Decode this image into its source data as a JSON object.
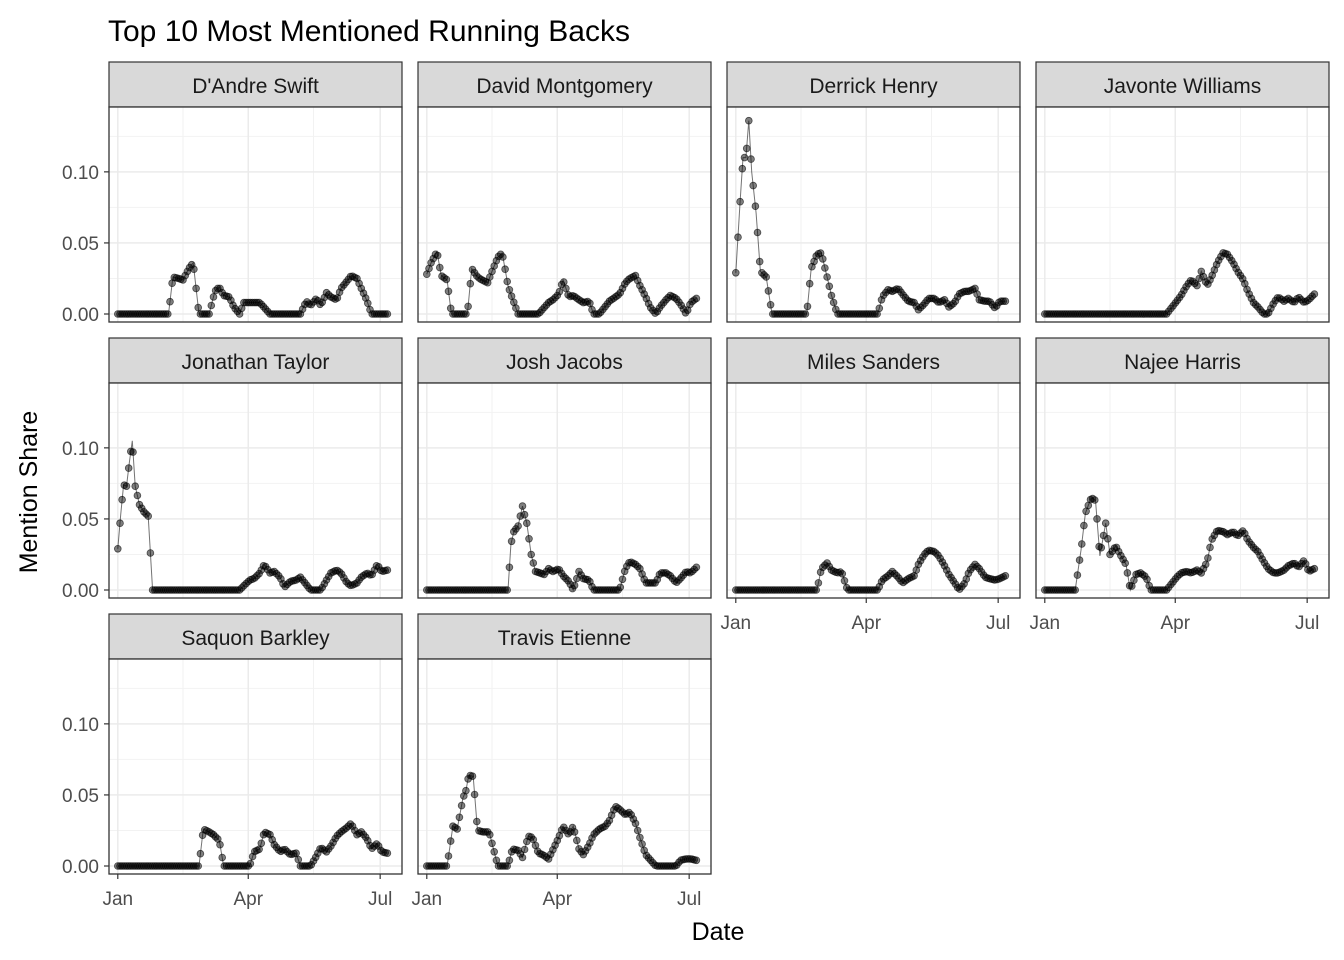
{
  "chart_data": {
    "type": "scatter",
    "title": "Top 10 Most Mentioned Running Backs",
    "xlabel": "Date",
    "ylabel": "Mention Share",
    "x_ticks": [
      "Jan",
      "Apr",
      "Jul"
    ],
    "y_ticks": [
      "0.00",
      "0.05",
      "0.10"
    ],
    "xlim": [
      "2022-01-01",
      "2022-07-10"
    ],
    "ylim": [
      0,
      0.14
    ],
    "grid": true,
    "legend": "none",
    "point_color": "#000000",
    "strip_fill": "#d9d9d9",
    "series": [
      {
        "name": "D'Andre Swift",
        "dates": [
          "2022-01-01",
          "2022-01-08",
          "2022-01-15",
          "2022-01-22",
          "2022-01-29",
          "2022-02-05",
          "2022-02-08",
          "2022-02-12",
          "2022-02-15",
          "2022-02-19",
          "2022-02-22",
          "2022-02-26",
          "2022-03-05",
          "2022-03-09",
          "2022-03-12",
          "2022-03-15",
          "2022-03-19",
          "2022-03-22",
          "2022-03-26",
          "2022-03-29",
          "2022-04-02",
          "2022-04-09",
          "2022-04-16",
          "2022-04-23",
          "2022-04-30",
          "2022-05-04",
          "2022-05-07",
          "2022-05-11",
          "2022-05-14",
          "2022-05-18",
          "2022-05-21",
          "2022-05-25",
          "2022-05-28",
          "2022-06-01",
          "2022-06-04",
          "2022-06-08",
          "2022-06-11",
          "2022-06-15",
          "2022-06-18",
          "2022-06-22",
          "2022-06-25",
          "2022-06-29",
          "2022-07-02",
          "2022-07-06"
        ],
        "values": [
          0,
          0,
          0,
          0,
          0,
          0,
          0.026,
          0.025,
          0.024,
          0.032,
          0.036,
          0,
          0,
          0.016,
          0.019,
          0.013,
          0.012,
          0.005,
          0,
          0.008,
          0.008,
          0.008,
          0,
          0,
          0,
          0,
          0,
          0.009,
          0.006,
          0.011,
          0.006,
          0.015,
          0.012,
          0.01,
          0.018,
          0.023,
          0.027,
          0.025,
          0.018,
          0.009,
          0,
          0,
          0,
          0
        ]
      },
      {
        "name": "David Montgomery",
        "dates": [
          "2022-01-01",
          "2022-01-04",
          "2022-01-08",
          "2022-01-11",
          "2022-01-15",
          "2022-01-18",
          "2022-01-22",
          "2022-01-29",
          "2022-02-01",
          "2022-02-05",
          "2022-02-08",
          "2022-02-12",
          "2022-02-15",
          "2022-02-19",
          "2022-02-22",
          "2022-02-26",
          "2022-03-01",
          "2022-03-05",
          "2022-03-12",
          "2022-03-19",
          "2022-03-26",
          "2022-03-29",
          "2022-04-02",
          "2022-04-05",
          "2022-04-09",
          "2022-04-12",
          "2022-04-16",
          "2022-04-19",
          "2022-04-23",
          "2022-04-26",
          "2022-04-30",
          "2022-05-07",
          "2022-05-14",
          "2022-05-18",
          "2022-05-21",
          "2022-05-25",
          "2022-05-28",
          "2022-06-01",
          "2022-06-04",
          "2022-06-08",
          "2022-06-11",
          "2022-06-15",
          "2022-06-18",
          "2022-06-22",
          "2022-06-25",
          "2022-06-29",
          "2022-07-02",
          "2022-07-06"
        ],
        "values": [
          0.028,
          0.036,
          0.044,
          0.027,
          0.024,
          0,
          0,
          0,
          0.032,
          0.026,
          0.024,
          0.022,
          0.03,
          0.04,
          0.043,
          0.02,
          0.011,
          0,
          0,
          0,
          0.008,
          0.01,
          0.014,
          0.024,
          0.012,
          0.013,
          0.01,
          0.008,
          0.009,
          0,
          0,
          0.009,
          0.014,
          0.022,
          0.025,
          0.027,
          0.02,
          0.012,
          0.005,
          0,
          0.005,
          0.01,
          0.013,
          0.011,
          0.007,
          0,
          0.008,
          0.011
        ]
      },
      {
        "name": "Derrick Henry",
        "dates": [
          "2022-01-01",
          "2022-01-04",
          "2022-01-06",
          "2022-01-08",
          "2022-01-10",
          "2022-01-12",
          "2022-01-15",
          "2022-01-18",
          "2022-01-22",
          "2022-01-26",
          "2022-01-29",
          "2022-02-05",
          "2022-02-12",
          "2022-02-19",
          "2022-02-22",
          "2022-02-26",
          "2022-03-01",
          "2022-03-05",
          "2022-03-08",
          "2022-03-12",
          "2022-03-19",
          "2022-03-26",
          "2022-04-02",
          "2022-04-09",
          "2022-04-12",
          "2022-04-16",
          "2022-04-19",
          "2022-04-23",
          "2022-04-26",
          "2022-04-30",
          "2022-05-04",
          "2022-05-07",
          "2022-05-11",
          "2022-05-14",
          "2022-05-18",
          "2022-05-21",
          "2022-05-25",
          "2022-05-28",
          "2022-06-01",
          "2022-06-04",
          "2022-06-08",
          "2022-06-11",
          "2022-06-15",
          "2022-06-18",
          "2022-06-22",
          "2022-06-25",
          "2022-06-29",
          "2022-07-02",
          "2022-07-06"
        ],
        "values": [
          0.029,
          0.079,
          0.11,
          0.11,
          0.136,
          0.1,
          0.071,
          0.03,
          0.026,
          0,
          0,
          0,
          0,
          0,
          0.032,
          0.042,
          0.043,
          0.026,
          0.013,
          0,
          0,
          0,
          0,
          0,
          0.012,
          0.017,
          0.016,
          0.018,
          0.014,
          0.009,
          0.008,
          0.003,
          0.007,
          0.011,
          0.011,
          0.008,
          0.01,
          0.005,
          0.008,
          0.014,
          0.016,
          0.016,
          0.018,
          0.01,
          0.009,
          0.009,
          0.004,
          0.009,
          0.009
        ]
      },
      {
        "name": "Javonte Williams",
        "dates": [
          "2022-01-01",
          "2022-01-15",
          "2022-01-29",
          "2022-02-12",
          "2022-02-26",
          "2022-03-12",
          "2022-03-26",
          "2022-04-02",
          "2022-04-05",
          "2022-04-09",
          "2022-04-12",
          "2022-04-16",
          "2022-04-19",
          "2022-04-23",
          "2022-04-26",
          "2022-04-30",
          "2022-05-04",
          "2022-05-07",
          "2022-05-11",
          "2022-05-14",
          "2022-05-18",
          "2022-05-21",
          "2022-05-25",
          "2022-05-28",
          "2022-06-01",
          "2022-06-04",
          "2022-06-08",
          "2022-06-11",
          "2022-06-15",
          "2022-06-18",
          "2022-06-22",
          "2022-06-25",
          "2022-06-29",
          "2022-07-02",
          "2022-07-06"
        ],
        "values": [
          0,
          0,
          0,
          0,
          0,
          0,
          0,
          0.009,
          0.013,
          0.02,
          0.024,
          0.02,
          0.03,
          0.02,
          0.026,
          0.036,
          0.043,
          0.042,
          0.036,
          0.03,
          0.024,
          0.016,
          0.008,
          0.005,
          0,
          0,
          0.008,
          0.012,
          0.009,
          0.011,
          0.008,
          0.012,
          0.008,
          0.01,
          0.014
        ]
      },
      {
        "name": "Jonathan Taylor",
        "dates": [
          "2022-01-01",
          "2022-01-03",
          "2022-01-05",
          "2022-01-07",
          "2022-01-09",
          "2022-01-11",
          "2022-01-13",
          "2022-01-16",
          "2022-01-19",
          "2022-01-22",
          "2022-01-25",
          "2022-01-29",
          "2022-02-05",
          "2022-02-12",
          "2022-02-19",
          "2022-02-26",
          "2022-03-05",
          "2022-03-12",
          "2022-03-19",
          "2022-03-26",
          "2022-04-02",
          "2022-04-05",
          "2022-04-09",
          "2022-04-12",
          "2022-04-16",
          "2022-04-19",
          "2022-04-23",
          "2022-04-26",
          "2022-04-30",
          "2022-05-04",
          "2022-05-07",
          "2022-05-14",
          "2022-05-21",
          "2022-05-25",
          "2022-05-28",
          "2022-06-01",
          "2022-06-04",
          "2022-06-08",
          "2022-06-11",
          "2022-06-15",
          "2022-06-18",
          "2022-06-22",
          "2022-06-25",
          "2022-06-29",
          "2022-07-02",
          "2022-07-06"
        ],
        "values": [
          0.029,
          0.053,
          0.074,
          0.073,
          0.09,
          0.105,
          0.073,
          0.06,
          0.055,
          0.052,
          0,
          0,
          0,
          0,
          0,
          0,
          0,
          0,
          0,
          0,
          0.007,
          0.008,
          0.012,
          0.018,
          0.012,
          0.013,
          0.009,
          0.002,
          0.006,
          0.007,
          0.009,
          0,
          0,
          0.007,
          0.012,
          0.014,
          0.012,
          0.005,
          0.003,
          0.005,
          0.009,
          0.012,
          0.01,
          0.018,
          0.013,
          0.014
        ]
      },
      {
        "name": "Josh Jacobs",
        "dates": [
          "2022-01-01",
          "2022-01-15",
          "2022-01-29",
          "2022-02-12",
          "2022-02-26",
          "2022-02-28",
          "2022-03-02",
          "2022-03-05",
          "2022-03-08",
          "2022-03-11",
          "2022-03-14",
          "2022-03-17",
          "2022-03-20",
          "2022-03-23",
          "2022-03-26",
          "2022-03-29",
          "2022-04-02",
          "2022-04-05",
          "2022-04-09",
          "2022-04-12",
          "2022-04-16",
          "2022-04-19",
          "2022-04-23",
          "2022-04-26",
          "2022-04-30",
          "2022-05-07",
          "2022-05-14",
          "2022-05-18",
          "2022-05-21",
          "2022-05-25",
          "2022-05-28",
          "2022-06-01",
          "2022-06-04",
          "2022-06-08",
          "2022-06-11",
          "2022-06-15",
          "2022-06-18",
          "2022-06-22",
          "2022-06-25",
          "2022-06-29",
          "2022-07-02",
          "2022-07-06"
        ],
        "values": [
          0,
          0,
          0,
          0,
          0,
          0.032,
          0.041,
          0.045,
          0.059,
          0.047,
          0.025,
          0.013,
          0.012,
          0.011,
          0.015,
          0.013,
          0.015,
          0.01,
          0.006,
          0,
          0.013,
          0.008,
          0.007,
          0,
          0,
          0,
          0,
          0.015,
          0.02,
          0.018,
          0.015,
          0.005,
          0.005,
          0.005,
          0.012,
          0.012,
          0.01,
          0.005,
          0.008,
          0.013,
          0.012,
          0.016
        ]
      },
      {
        "name": "Miles Sanders",
        "dates": [
          "2022-01-01",
          "2022-01-15",
          "2022-01-29",
          "2022-02-12",
          "2022-02-26",
          "2022-03-01",
          "2022-03-05",
          "2022-03-08",
          "2022-03-12",
          "2022-03-15",
          "2022-03-19",
          "2022-03-26",
          "2022-04-02",
          "2022-04-09",
          "2022-04-12",
          "2022-04-16",
          "2022-04-19",
          "2022-04-23",
          "2022-04-26",
          "2022-04-30",
          "2022-05-04",
          "2022-05-07",
          "2022-05-11",
          "2022-05-14",
          "2022-05-18",
          "2022-05-21",
          "2022-05-25",
          "2022-05-28",
          "2022-06-01",
          "2022-06-04",
          "2022-06-08",
          "2022-06-11",
          "2022-06-15",
          "2022-06-18",
          "2022-06-22",
          "2022-06-25",
          "2022-06-29",
          "2022-07-02",
          "2022-07-06"
        ],
        "values": [
          0,
          0,
          0,
          0,
          0,
          0.015,
          0.019,
          0.014,
          0.012,
          0.013,
          0,
          0,
          0,
          0,
          0.007,
          0.01,
          0.013,
          0.009,
          0.005,
          0.008,
          0.01,
          0.018,
          0.025,
          0.028,
          0.027,
          0.024,
          0.017,
          0.011,
          0.005,
          0,
          0.005,
          0.013,
          0.018,
          0.015,
          0.009,
          0.008,
          0.007,
          0.008,
          0.01
        ]
      },
      {
        "name": "Najee Harris",
        "dates": [
          "2022-01-01",
          "2022-01-08",
          "2022-01-15",
          "2022-01-22",
          "2022-01-26",
          "2022-01-29",
          "2022-02-02",
          "2022-02-05",
          "2022-02-08",
          "2022-02-12",
          "2022-02-15",
          "2022-02-19",
          "2022-02-22",
          "2022-02-26",
          "2022-03-01",
          "2022-03-05",
          "2022-03-08",
          "2022-03-12",
          "2022-03-15",
          "2022-03-19",
          "2022-03-26",
          "2022-04-02",
          "2022-04-05",
          "2022-04-09",
          "2022-04-12",
          "2022-04-16",
          "2022-04-19",
          "2022-04-23",
          "2022-04-26",
          "2022-04-30",
          "2022-05-04",
          "2022-05-07",
          "2022-05-11",
          "2022-05-14",
          "2022-05-18",
          "2022-05-21",
          "2022-05-25",
          "2022-05-28",
          "2022-06-01",
          "2022-06-04",
          "2022-06-08",
          "2022-06-11",
          "2022-06-15",
          "2022-06-18",
          "2022-06-22",
          "2022-06-25",
          "2022-06-29",
          "2022-07-02",
          "2022-07-06"
        ],
        "values": [
          0,
          0,
          0,
          0,
          0.028,
          0.054,
          0.065,
          0.063,
          0.024,
          0.047,
          0.025,
          0.031,
          0.025,
          0.018,
          0,
          0.011,
          0.012,
          0.009,
          0,
          0,
          0,
          0.009,
          0.012,
          0.013,
          0.012,
          0.014,
          0.012,
          0.02,
          0.035,
          0.042,
          0.041,
          0.039,
          0.041,
          0.038,
          0.042,
          0.035,
          0.03,
          0.027,
          0.02,
          0.015,
          0.012,
          0.012,
          0.014,
          0.017,
          0.019,
          0.016,
          0.021,
          0.013,
          0.015
        ]
      },
      {
        "name": "Saquon Barkley",
        "dates": [
          "2022-01-01",
          "2022-01-15",
          "2022-01-29",
          "2022-02-12",
          "2022-02-26",
          "2022-03-01",
          "2022-03-05",
          "2022-03-08",
          "2022-03-12",
          "2022-03-15",
          "2022-03-19",
          "2022-03-26",
          "2022-04-02",
          "2022-04-05",
          "2022-04-09",
          "2022-04-12",
          "2022-04-16",
          "2022-04-19",
          "2022-04-23",
          "2022-04-26",
          "2022-04-30",
          "2022-05-04",
          "2022-05-07",
          "2022-05-14",
          "2022-05-18",
          "2022-05-21",
          "2022-05-25",
          "2022-05-28",
          "2022-06-01",
          "2022-06-04",
          "2022-06-08",
          "2022-06-11",
          "2022-06-15",
          "2022-06-18",
          "2022-06-22",
          "2022-06-25",
          "2022-06-29",
          "2022-07-02",
          "2022-07-06"
        ],
        "values": [
          0,
          0,
          0,
          0,
          0,
          0.026,
          0.024,
          0.022,
          0.018,
          0,
          0,
          0,
          0,
          0.01,
          0.012,
          0.024,
          0.022,
          0.015,
          0.01,
          0.012,
          0.008,
          0.009,
          0,
          0,
          0.007,
          0.013,
          0.01,
          0.014,
          0.021,
          0.024,
          0.027,
          0.03,
          0.022,
          0.024,
          0.019,
          0.012,
          0.016,
          0.01,
          0.009
        ]
      },
      {
        "name": "Travis Etienne",
        "dates": [
          "2022-01-01",
          "2022-01-08",
          "2022-01-15",
          "2022-01-19",
          "2022-01-22",
          "2022-01-26",
          "2022-01-28",
          "2022-01-30",
          "2022-02-02",
          "2022-02-05",
          "2022-02-09",
          "2022-02-13",
          "2022-02-19",
          "2022-02-26",
          "2022-03-01",
          "2022-03-05",
          "2022-03-08",
          "2022-03-12",
          "2022-03-15",
          "2022-03-19",
          "2022-03-22",
          "2022-03-26",
          "2022-04-02",
          "2022-04-05",
          "2022-04-09",
          "2022-04-12",
          "2022-04-16",
          "2022-04-19",
          "2022-04-23",
          "2022-04-26",
          "2022-04-30",
          "2022-05-04",
          "2022-05-07",
          "2022-05-11",
          "2022-05-14",
          "2022-05-18",
          "2022-05-21",
          "2022-05-25",
          "2022-05-28",
          "2022-06-01",
          "2022-06-08",
          "2022-06-15",
          "2022-06-22",
          "2022-06-25",
          "2022-06-29",
          "2022-07-02",
          "2022-07-06"
        ],
        "values": [
          0,
          0,
          0,
          0.028,
          0.026,
          0.048,
          0.053,
          0.064,
          0.063,
          0.025,
          0.024,
          0.024,
          0,
          0,
          0.012,
          0.011,
          0.006,
          0.021,
          0.02,
          0.009,
          0.008,
          0.005,
          0.02,
          0.028,
          0.022,
          0.028,
          0.012,
          0.008,
          0.015,
          0.022,
          0.026,
          0.028,
          0.032,
          0.042,
          0.04,
          0.036,
          0.038,
          0.03,
          0.02,
          0.008,
          0,
          0,
          0,
          0.004,
          0.005,
          0.005,
          0.004
        ]
      }
    ]
  }
}
